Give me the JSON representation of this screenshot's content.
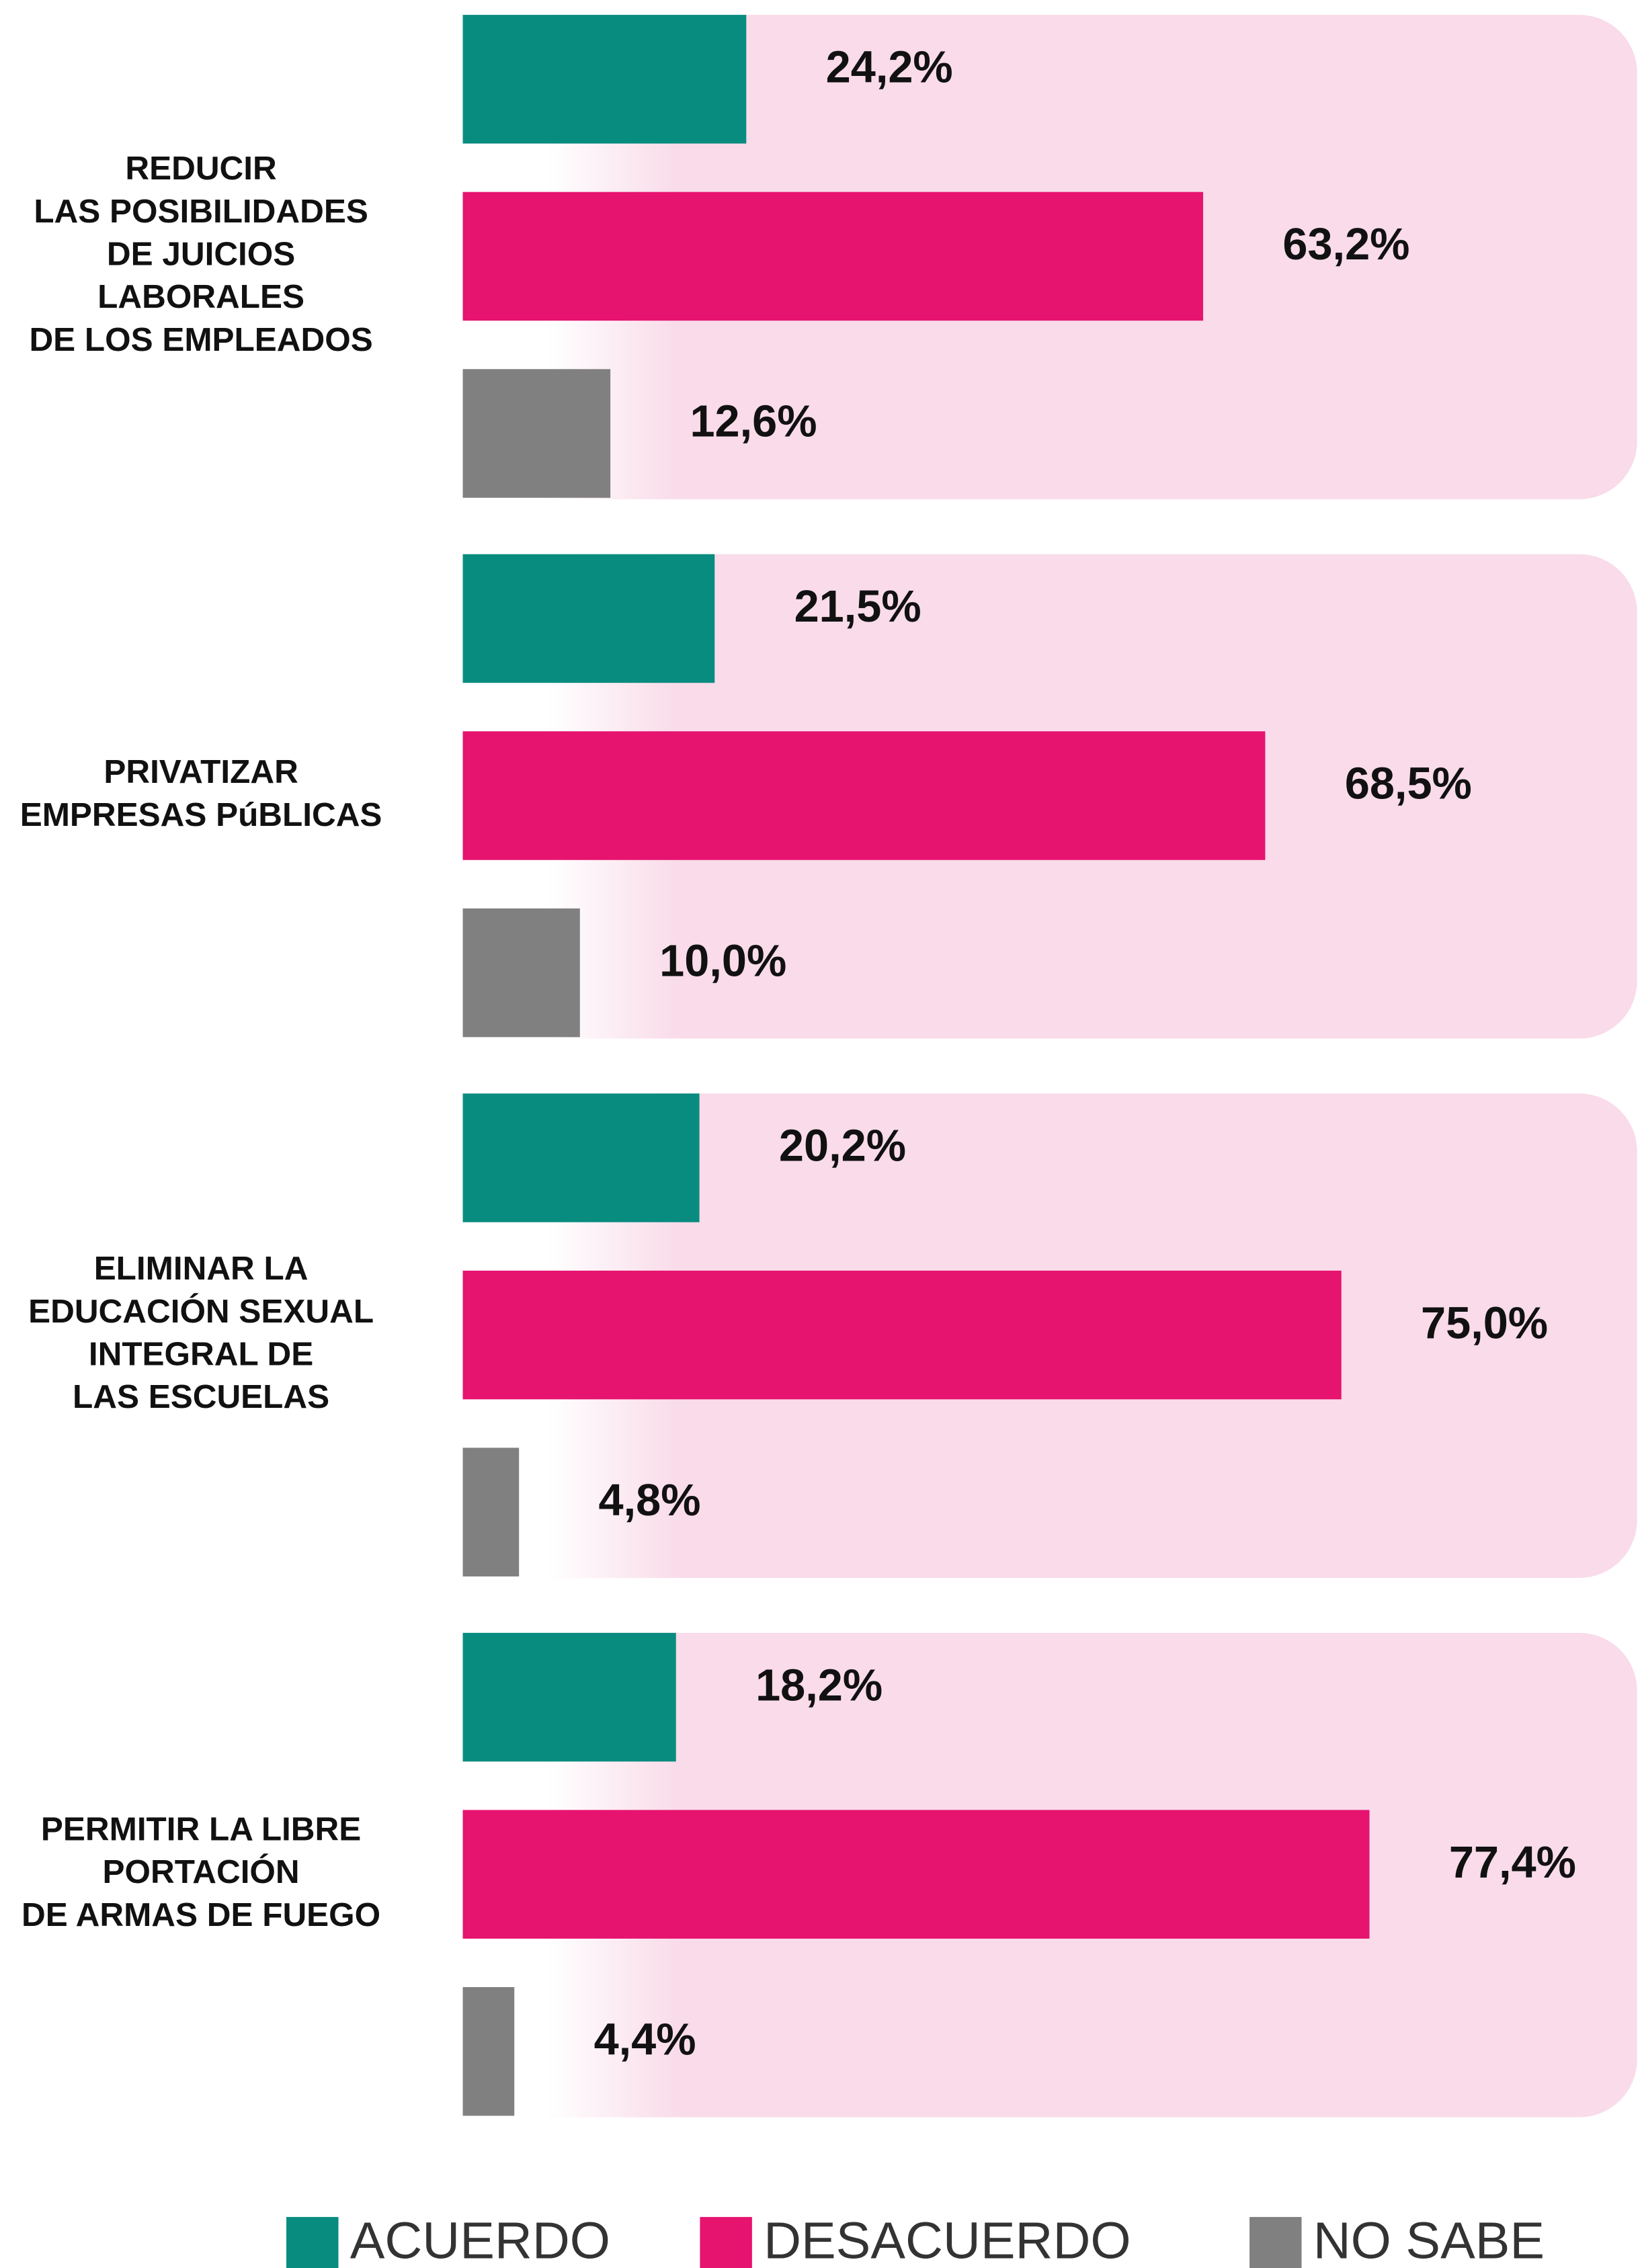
{
  "chart_data": {
    "type": "bar",
    "orientation": "horizontal",
    "categories": [
      [
        "REDUCIR",
        "LAS POSIBILIDADES",
        "DE JUICIOS",
        "LABORALES",
        "DE LOS EMPLEADOS"
      ],
      [
        "PRIVATIZAR",
        "EMPRESAS PúBLICAS"
      ],
      [
        "ELIMINAR LA",
        "EDUCACIÓN SEXUAL",
        "INTEGRAL DE",
        "LAS ESCUELAS"
      ],
      [
        "PERMITIR LA LIBRE",
        "PORTACIÓN",
        "DE ARMAS DE FUEGO"
      ]
    ],
    "series": [
      {
        "name": "ACUERDO",
        "color": "#088c7f",
        "values": [
          24.2,
          21.5,
          20.2,
          18.2
        ],
        "value_labels": [
          "24,2%",
          "21,5%",
          "20,2%",
          "18,2%"
        ]
      },
      {
        "name": "DESACUERDO",
        "color": "#e6136f",
        "values": [
          63.2,
          68.5,
          75.0,
          77.4
        ],
        "value_labels": [
          "63,2%",
          "68,5%",
          "75,0%",
          "77,4%"
        ]
      },
      {
        "name": "NO SABE",
        "color": "#808080",
        "values": [
          12.6,
          10.0,
          4.8,
          4.4
        ],
        "value_labels": [
          "12,6%",
          "10,0%",
          "4,8%",
          "4,4%"
        ]
      }
    ],
    "panel_color": "#f9dbe9",
    "legend": "bottom"
  }
}
